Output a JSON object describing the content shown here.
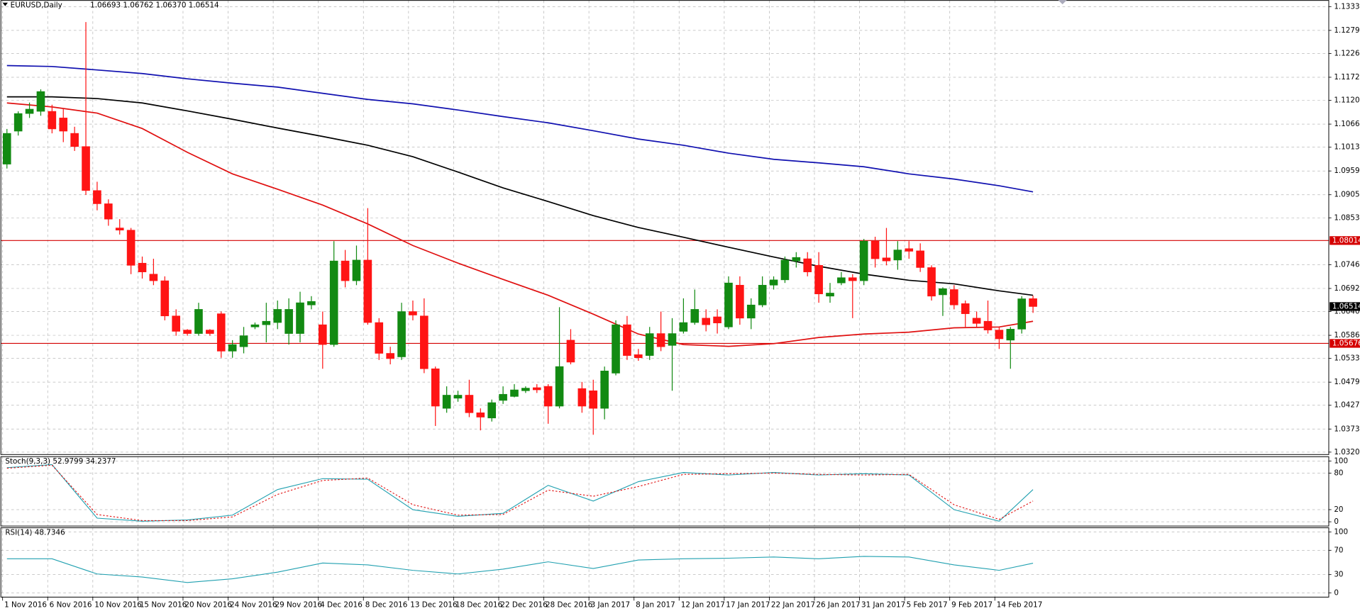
{
  "chart_data": [
    {
      "type": "candlestick",
      "title": "EURUSD,Daily",
      "ohlc_label": "1.06693 1.06762 1.06370 1.06514",
      "categories": [
        "1 Nov 2016",
        null,
        null,
        null,
        "6 Nov 2016",
        null,
        null,
        null,
        "10 Nov 2016",
        null,
        null,
        null,
        "15 Nov 2016",
        null,
        null,
        null,
        "20 Nov 2016",
        null,
        null,
        null,
        "24 Nov 2016",
        null,
        null,
        null,
        "29 Nov 2016",
        null,
        null,
        null,
        "4 Dec 2016",
        null,
        null,
        null,
        "8 Dec 2016",
        null,
        null,
        null,
        "13 Dec 2016",
        null,
        null,
        null,
        "18 Dec 2016",
        null,
        null,
        null,
        "22 Dec 2016",
        null,
        null,
        null,
        "28 Dec 2016",
        null,
        null,
        null,
        "3 Jan 2017",
        null,
        null,
        null,
        "8 Jan 2017",
        null,
        null,
        null,
        "12 Jan 2017",
        null,
        null,
        null,
        "17 Jan 2017",
        null,
        null,
        null,
        "22 Jan 2017",
        null,
        null,
        null,
        "26 Jan 2017",
        null,
        null,
        null,
        "31 Jan 2017",
        null,
        null,
        null,
        "5 Feb 2017",
        null,
        null,
        null,
        "9 Feb 2017",
        null,
        null,
        null,
        "14 Feb 2017",
        null,
        null,
        null
      ],
      "open": [
        1.0975,
        1.105,
        1.109,
        1.1095,
        1.1095,
        1.108,
        1.1045,
        1.1015,
        1.0915,
        1.0885,
        1.083,
        1.0825,
        1.075,
        1.0725,
        1.071,
        1.063,
        1.0598,
        1.059,
        1.0598,
        1.0635,
        1.055,
        1.056,
        1.0605,
        1.061,
        1.0615,
        1.059,
        1.059,
        1.0655,
        1.061,
        1.0565,
        1.0755,
        1.071,
        1.0757,
        1.0615,
        1.0545,
        1.0537,
        1.064,
        1.063,
        1.051,
        1.042,
        1.0443,
        1.045,
        1.041,
        1.0398,
        1.0438,
        1.0447,
        1.046,
        1.0467,
        1.047,
        1.0425,
        1.0575,
        1.0465,
        1.046,
        1.042,
        1.05,
        1.061,
        1.0542,
        1.054,
        1.059,
        1.0563,
        1.0595,
        1.0615,
        1.0625,
        1.0628,
        1.0605,
        1.07,
        1.0625,
        1.0655,
        1.07,
        1.0712,
        1.0755,
        1.076,
        1.0745,
        1.0675,
        1.0705,
        1.0717,
        1.071,
        1.08,
        1.0762,
        1.0757,
        1.0783,
        1.0778,
        1.074,
        1.0678,
        1.069,
        1.0658,
        1.0625,
        1.0618,
        1.0598,
        1.0575,
        1.06,
        1.06693
      ],
      "high": [
        1.1055,
        1.1095,
        1.1115,
        1.1145,
        1.111,
        1.11,
        1.106,
        1.1298,
        1.0935,
        1.0895,
        1.085,
        1.083,
        1.0765,
        1.076,
        1.072,
        1.0645,
        1.06,
        1.066,
        1.06,
        1.064,
        1.0575,
        1.0605,
        1.0615,
        1.066,
        1.0665,
        1.067,
        1.0685,
        1.0675,
        1.064,
        1.08,
        1.078,
        1.079,
        1.0875,
        1.0625,
        1.056,
        1.066,
        1.0665,
        1.067,
        1.0515,
        1.047,
        1.046,
        1.0485,
        1.042,
        1.044,
        1.047,
        1.0475,
        1.047,
        1.0475,
        1.0475,
        1.065,
        1.06,
        1.048,
        1.0485,
        1.0515,
        1.062,
        1.063,
        1.0555,
        1.0605,
        1.064,
        1.0625,
        1.067,
        1.069,
        1.0645,
        1.0645,
        1.072,
        1.072,
        1.067,
        1.072,
        1.072,
        1.0765,
        1.0775,
        1.0775,
        1.0775,
        1.0705,
        1.073,
        1.0725,
        1.0805,
        1.081,
        1.083,
        1.08,
        1.08,
        1.0795,
        1.0745,
        1.0695,
        1.07,
        1.0665,
        1.064,
        1.0665,
        1.0605,
        1.0605,
        1.0675,
        1.06762
      ],
      "low": [
        1.0965,
        1.104,
        1.108,
        1.1085,
        1.1045,
        1.1025,
        1.1005,
        1.0905,
        1.087,
        1.0835,
        1.0815,
        1.0725,
        1.0715,
        1.07,
        1.062,
        1.0585,
        1.0585,
        1.0585,
        1.0585,
        1.0535,
        1.0535,
        1.0545,
        1.06,
        1.057,
        1.06,
        1.0565,
        1.057,
        1.0645,
        1.051,
        1.056,
        1.0695,
        1.07,
        1.061,
        1.053,
        1.052,
        1.053,
        1.062,
        1.05,
        1.038,
        1.041,
        1.0435,
        1.04,
        1.037,
        1.039,
        1.043,
        1.0445,
        1.0455,
        1.0455,
        1.0385,
        1.042,
        1.052,
        1.041,
        1.036,
        1.0395,
        1.0495,
        1.053,
        1.0528,
        1.053,
        1.055,
        1.046,
        1.059,
        1.061,
        1.0595,
        1.059,
        1.06,
        1.061,
        1.06,
        1.065,
        1.069,
        1.0705,
        1.074,
        1.072,
        1.066,
        1.066,
        1.07,
        1.0625,
        1.07,
        1.074,
        1.0745,
        1.0735,
        1.076,
        1.073,
        1.0665,
        1.063,
        1.0645,
        1.0605,
        1.0605,
        1.059,
        1.0555,
        1.051,
        1.059,
        1.0637
      ],
      "close": [
        1.1045,
        1.109,
        1.11,
        1.114,
        1.1055,
        1.105,
        1.1015,
        1.0915,
        1.0885,
        1.085,
        1.0825,
        1.0745,
        1.073,
        1.071,
        1.063,
        1.0595,
        1.059,
        1.0645,
        1.059,
        1.055,
        1.0565,
        1.0585,
        1.061,
        1.0618,
        1.0645,
        1.0645,
        1.066,
        1.0663,
        1.0565,
        1.0755,
        1.071,
        1.0757,
        1.0615,
        1.0545,
        1.0533,
        1.064,
        1.0632,
        1.051,
        1.0425,
        1.045,
        1.045,
        1.041,
        1.04,
        1.0433,
        1.0452,
        1.0462,
        1.0466,
        1.0462,
        1.0425,
        1.0515,
        1.0525,
        1.0425,
        1.042,
        1.0505,
        1.061,
        1.054,
        1.0535,
        1.059,
        1.056,
        1.059,
        1.0615,
        1.0645,
        1.061,
        1.0614,
        1.0705,
        1.0625,
        1.0655,
        1.07,
        1.0712,
        1.0757,
        1.0763,
        1.073,
        1.068,
        1.0682,
        1.0717,
        1.071,
        1.08,
        1.076,
        1.0755,
        1.078,
        1.0777,
        1.074,
        1.0675,
        1.0692,
        1.0655,
        1.0635,
        1.0613,
        1.0598,
        1.0578,
        1.06,
        1.0669,
        1.06514
      ],
      "up_color": "#128a12",
      "down_color": "#ff1414",
      "ylim": [
        1.0315,
        1.1347
      ],
      "yticks": [
        {
          "value": 1.1333,
          "label": "1.13330"
        },
        {
          "value": 1.1279,
          "label": "1.12790"
        },
        1.12265,
        1.11725,
        {
          "value": 1.112,
          "label": "1.11200"
        },
        {
          "value": 1.1066,
          "label": "1.10660"
        },
        1.10135,
        1.09595,
        1.09055,
        {
          "value": 1.0853,
          "label": "1.08530"
        },
        1.07465,
        1.06925,
        {
          "value": 1.064,
          "label": "1.06400"
        },
        {
          "value": 1.0586,
          "label": "1.05860"
        },
        1.05335,
        1.04795,
        {
          "value": 1.0427,
          "label": "1.04270"
        },
        {
          "value": 1.0373,
          "label": "1.03730"
        },
        1.03205
      ],
      "grid": true,
      "levels": [
        {
          "value": 1.08014,
          "color": "#d40000"
        },
        {
          "value": 1.05676,
          "color": "#d40000"
        }
      ],
      "series": [
        {
          "color": "#1010b0",
          "x": [
            0,
            4,
            8,
            12,
            16,
            20,
            24,
            28,
            32,
            36,
            40,
            44,
            48,
            52,
            56,
            60,
            64,
            68,
            72,
            76,
            80,
            84,
            88,
            91
          ],
          "values": [
            1.1199,
            1.1197,
            1.1189,
            1.1181,
            1.1169,
            1.1159,
            1.115,
            1.1136,
            1.1122,
            1.1112,
            1.1098,
            1.1083,
            1.1069,
            1.1051,
            1.1032,
            1.1018,
            1.1,
            1.0986,
            1.0978,
            1.0969,
            1.0953,
            1.0941,
            1.0926,
            1.0912
          ]
        },
        {
          "color": "#000000",
          "x": [
            0,
            4,
            8,
            12,
            16,
            20,
            24,
            28,
            32,
            36,
            40,
            44,
            48,
            52,
            56,
            60,
            64,
            68,
            72,
            76,
            80,
            84,
            88,
            91
          ],
          "values": [
            1.1128,
            1.1128,
            1.1124,
            1.1114,
            1.1096,
            1.1077,
            1.1057,
            1.1038,
            1.1018,
            1.0992,
            1.0957,
            1.0921,
            1.089,
            1.0858,
            1.0831,
            1.0809,
            1.0786,
            1.0764,
            1.0743,
            1.0725,
            1.0711,
            1.0703,
            1.0687,
            1.0677
          ]
        },
        {
          "color": "#e01010",
          "x": [
            0,
            4,
            8,
            12,
            16,
            20,
            24,
            28,
            32,
            36,
            40,
            44,
            48,
            52,
            56,
            60,
            64,
            68,
            72,
            76,
            80,
            84,
            88,
            91
          ],
          "values": [
            1.1114,
            1.1105,
            1.1091,
            1.1056,
            1.1002,
            1.0953,
            1.0918,
            1.0882,
            1.0839,
            1.079,
            1.075,
            1.0713,
            1.0677,
            1.0634,
            1.0589,
            1.0565,
            1.0561,
            1.0567,
            1.0581,
            1.0589,
            1.0593,
            1.0603,
            1.0605,
            1.0618
          ]
        }
      ]
    },
    {
      "type": "line",
      "title": "Stoch(9,3,3) 52.9799 34.2377",
      "ylim": [
        -7,
        107
      ],
      "yticks": [
        100,
        80,
        20,
        0
      ],
      "grid": true,
      "series": [
        {
          "color": "#20a0b0",
          "x": [
            0,
            4,
            8,
            12,
            16,
            20,
            24,
            28,
            32,
            36,
            40,
            44,
            48,
            52,
            56,
            60,
            64,
            68,
            72,
            76,
            80,
            84,
            88,
            91
          ],
          "values": [
            89,
            94,
            6,
            1,
            3,
            11,
            53,
            71,
            70,
            20,
            9,
            14,
            60,
            34,
            66,
            81,
            77,
            81,
            77,
            79,
            77,
            20,
            1,
            52.9799
          ]
        },
        {
          "color": "#e01010",
          "dashed": true,
          "x": [
            0,
            4,
            8,
            12,
            16,
            20,
            24,
            28,
            32,
            36,
            40,
            44,
            48,
            52,
            56,
            60,
            64,
            68,
            72,
            76,
            80,
            84,
            88,
            91
          ],
          "values": [
            88,
            93,
            12,
            2,
            2,
            8,
            45,
            68,
            72,
            28,
            11,
            12,
            52,
            42,
            58,
            78,
            79,
            80,
            78,
            77,
            78,
            28,
            4,
            34.2377
          ]
        }
      ]
    },
    {
      "type": "line",
      "title": "RSI(14) 48.7346",
      "ylim": [
        -7,
        107
      ],
      "yticks": [
        100,
        70,
        30,
        0
      ],
      "grid": true,
      "series": [
        {
          "color": "#20a0b0",
          "x": [
            0,
            4,
            8,
            12,
            16,
            20,
            24,
            28,
            32,
            36,
            40,
            44,
            48,
            52,
            56,
            60,
            64,
            68,
            72,
            76,
            80,
            84,
            88,
            91
          ],
          "values": [
            56,
            56,
            31,
            26,
            17,
            23,
            34,
            49,
            46,
            37,
            31,
            39,
            51,
            40,
            54,
            56,
            57,
            59,
            56,
            60,
            59,
            46,
            37,
            48.7346
          ]
        }
      ]
    }
  ]
}
